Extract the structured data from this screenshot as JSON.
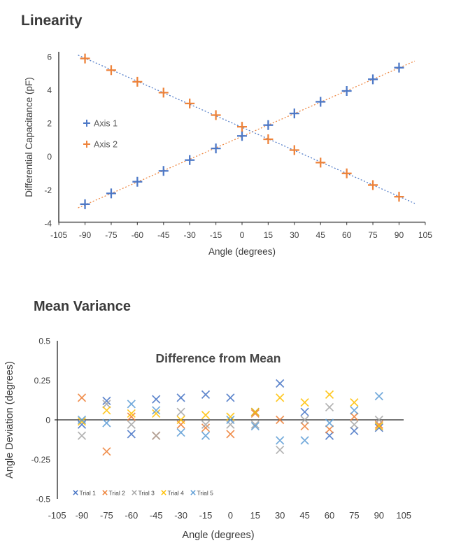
{
  "theme": {
    "background": "#ffffff",
    "title_color": "#3a3a3a",
    "tick_color": "#404040",
    "axis_line_color": "#4d4d4d",
    "zero_line_color": "#262626",
    "legend_text_color": "#595959"
  },
  "chart_data": [
    {
      "type": "scatter",
      "title": "Linearity",
      "xlabel": "Angle (degrees)",
      "ylabel": "Differential  Capacitance (pF)",
      "xlim": [
        -105,
        105
      ],
      "ylim": [
        -4,
        6
      ],
      "xticks": [
        -105,
        -90,
        -75,
        -60,
        -45,
        -30,
        -15,
        0,
        15,
        30,
        45,
        60,
        75,
        90,
        105
      ],
      "yticks": [
        6,
        4,
        2,
        0,
        -2,
        -4
      ],
      "grid": false,
      "legend_position": "inside-left",
      "marker": "plus",
      "x": [
        -90,
        -75,
        -60,
        -45,
        -30,
        -15,
        0,
        15,
        30,
        45,
        60,
        75,
        90
      ],
      "series": [
        {
          "name": "Axis 1",
          "color": "#4472C4",
          "trendline": "linear-dotted",
          "trendline_color": "#ED7D31",
          "values": [
            -2.85,
            -2.2,
            -1.5,
            -0.85,
            -0.2,
            0.5,
            1.25,
            1.9,
            2.6,
            3.3,
            3.95,
            4.65,
            5.35
          ]
        },
        {
          "name": "Axis 2",
          "color": "#ED7D31",
          "trendline": "linear-dotted",
          "trendline_color": "#4472C4",
          "values": [
            5.9,
            5.2,
            4.5,
            3.85,
            3.2,
            2.5,
            1.8,
            1.05,
            0.4,
            -0.35,
            -1.0,
            -1.7,
            -2.4
          ]
        }
      ]
    },
    {
      "type": "scatter",
      "title": "Mean Variance",
      "inner_title": "Difference from Mean",
      "xlabel": "Angle (degrees)",
      "ylabel": "Angle Deviation (degrees)",
      "xlim": [
        -105,
        105
      ],
      "ylim": [
        -0.5,
        0.5
      ],
      "xticks": [
        -105,
        -90,
        -75,
        -60,
        -45,
        -30,
        -15,
        0,
        15,
        30,
        45,
        60,
        75,
        90,
        105
      ],
      "yticks": [
        0.5,
        0.25,
        0,
        -0.25,
        -0.5
      ],
      "grid": false,
      "legend_position": "bottom-left",
      "marker": "cross",
      "x": [
        -90,
        -75,
        -60,
        -45,
        -30,
        -15,
        0,
        15,
        30,
        45,
        60,
        75,
        90
      ],
      "series": [
        {
          "name": "Trial 1",
          "color": "#4472C4",
          "values": [
            -0.03,
            0.12,
            -0.09,
            0.13,
            0.14,
            0.16,
            0.14,
            0.05,
            0.23,
            0.05,
            -0.1,
            -0.07,
            -0.05
          ]
        },
        {
          "name": "Trial 2",
          "color": "#ED7D31",
          "values": [
            0.14,
            -0.2,
            0.02,
            -0.1,
            -0.03,
            -0.05,
            -0.09,
            0.04,
            0.0,
            -0.04,
            -0.06,
            0.02,
            -0.03
          ]
        },
        {
          "name": "Trial 3",
          "color": "#A5A5A5",
          "values": [
            -0.1,
            0.1,
            -0.03,
            -0.1,
            0.05,
            -0.03,
            -0.03,
            -0.03,
            -0.19,
            0.0,
            0.08,
            -0.03,
            0.0
          ]
        },
        {
          "name": "Trial 4",
          "color": "#FFC000",
          "values": [
            -0.01,
            0.06,
            0.04,
            0.04,
            0.0,
            0.03,
            0.02,
            0.05,
            0.14,
            0.11,
            0.16,
            0.11,
            -0.04
          ]
        },
        {
          "name": "Trial 5",
          "color": "#5B9BD5",
          "values": [
            0.0,
            -0.02,
            0.1,
            0.06,
            -0.08,
            -0.1,
            0.0,
            -0.04,
            -0.13,
            -0.13,
            -0.02,
            0.06,
            0.15
          ]
        }
      ]
    }
  ]
}
